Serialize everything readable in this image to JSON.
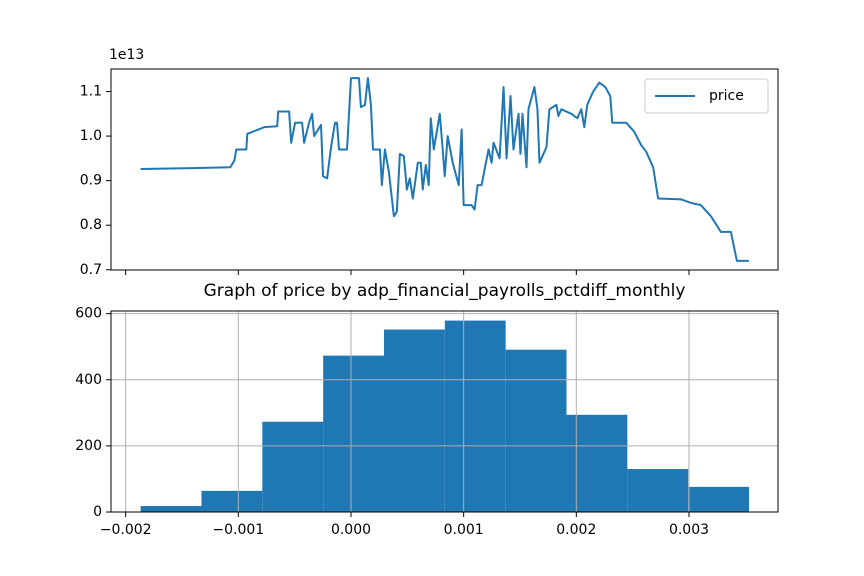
{
  "chart_data": [
    {
      "type": "line",
      "offset_text": "1e13",
      "legend": "upper right",
      "x": [
        -0.001867,
        -0.001407,
        -0.001071,
        -0.001035,
        -0.001018,
        -0.000929,
        -0.00092,
        -0.00077,
        -0.000655,
        -0.000646,
        -0.000549,
        -0.000531,
        -0.000496,
        -0.000434,
        -0.000416,
        -0.000372,
        -0.000345,
        -0.000327,
        -0.000266,
        -0.000248,
        -0.000212,
        -0.000177,
        -0.000142,
        -0.000124,
        -0.000106,
        -3.5e-05,
        0.0,
        7.1e-05,
        8.8e-05,
        0.000124,
        0.00015,
        0.000177,
        0.000195,
        0.000257,
        0.000274,
        0.000301,
        0.000336,
        0.000381,
        0.000407,
        0.000434,
        0.000469,
        0.000496,
        0.000522,
        0.000549,
        0.000593,
        0.00062,
        0.000637,
        0.000664,
        0.00069,
        0.000708,
        0.000735,
        0.000788,
        0.000814,
        0.000832,
        0.000858,
        0.000903,
        0.000956,
        0.000982,
        0.001,
        0.001071,
        0.001097,
        0.001124,
        0.001159,
        0.001221,
        0.001248,
        0.001265,
        0.001319,
        0.001354,
        0.001381,
        0.001416,
        0.001442,
        0.001487,
        0.001504,
        0.001522,
        0.001558,
        0.001575,
        0.001628,
        0.001655,
        0.001673,
        0.001735,
        0.001761,
        0.001823,
        0.001841,
        0.001867,
        0.001956,
        0.002009,
        0.002044,
        0.002071,
        0.002097,
        0.00215,
        0.002204,
        0.002257,
        0.002301,
        0.002319,
        0.002443,
        0.002513,
        0.002575,
        0.00262,
        0.002682,
        0.002726,
        0.002929,
        0.003018,
        0.003106,
        0.003195,
        0.003283,
        0.003372,
        0.003425,
        0.003531
      ],
      "series": [
        {
          "name": "price",
          "color": "#1f77b4",
          "values": [
            0.926,
            0.928,
            0.93,
            0.945,
            0.97,
            0.97,
            1.005,
            1.02,
            1.022,
            1.055,
            1.055,
            0.985,
            1.03,
            1.03,
            0.985,
            1.03,
            1.05,
            1.0,
            1.025,
            0.91,
            0.905,
            0.975,
            1.03,
            1.03,
            0.97,
            0.97,
            1.13,
            1.13,
            1.065,
            1.07,
            1.13,
            1.07,
            0.97,
            0.97,
            0.89,
            0.97,
            0.92,
            0.82,
            0.83,
            0.96,
            0.955,
            0.88,
            0.905,
            0.86,
            0.94,
            0.94,
            0.88,
            0.935,
            0.89,
            1.04,
            0.97,
            1.05,
            0.97,
            0.91,
            1.0,
            0.94,
            0.89,
            1.015,
            0.845,
            0.845,
            0.835,
            0.89,
            0.89,
            0.97,
            0.94,
            0.985,
            0.95,
            1.11,
            0.95,
            1.09,
            0.97,
            1.05,
            0.96,
            1.05,
            0.93,
            1.06,
            1.11,
            1.06,
            0.94,
            0.975,
            1.06,
            1.07,
            1.045,
            1.06,
            1.05,
            1.04,
            1.06,
            1.02,
            1.07,
            1.1,
            1.12,
            1.11,
            1.09,
            1.03,
            1.03,
            1.01,
            0.98,
            0.965,
            0.93,
            0.86,
            0.858,
            0.85,
            0.845,
            0.82,
            0.785,
            0.785,
            0.72,
            0.72
          ]
        }
      ],
      "xlim": [
        -0.00213,
        0.00379
      ],
      "ylim": [
        0.6995,
        1.1505
      ],
      "yticks": [
        0.7,
        0.8,
        0.9,
        {
          "value": 1.0,
          "label": "1.0"
        },
        1.1
      ]
    },
    {
      "type": "histogram",
      "title": "Graph of price by adp_financial_payrolls_pctdiff_monthly",
      "color": "#1f77b4",
      "grid": true,
      "bins": [
        -0.001867,
        -0.001327,
        -0.000787,
        -0.000247,
        0.000293,
        0.000833,
        0.001373,
        0.001913,
        0.002453,
        0.002993,
        0.003533
      ],
      "values": [
        18,
        64,
        273,
        473,
        552,
        579,
        491,
        294,
        130,
        76
      ],
      "xlim": [
        -0.00213,
        0.00379
      ],
      "xticks": [
        {
          "value": -0.002,
          "label": "−0.002"
        },
        {
          "value": -0.001,
          "label": "−0.001"
        },
        {
          "value": 0,
          "label": "0.000"
        },
        {
          "value": 0.001,
          "label": "0.001"
        },
        {
          "value": 0.002,
          "label": "0.002"
        },
        {
          "value": 0.003,
          "label": "0.003"
        }
      ],
      "ylim": [
        0,
        608
      ],
      "yticks": [
        0,
        200,
        400,
        600
      ]
    }
  ]
}
